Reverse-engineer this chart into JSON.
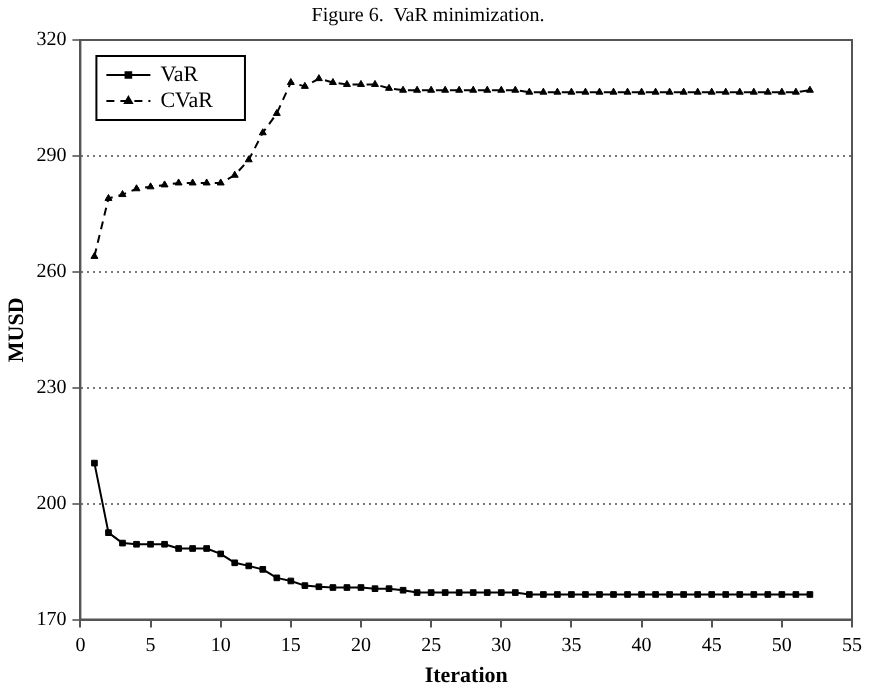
{
  "chart_data": {
    "type": "line",
    "title": "Figure 6.  VaR minimization.",
    "xlabel": "Iteration",
    "ylabel": "MUSD",
    "x": [
      1,
      2,
      3,
      4,
      5,
      6,
      7,
      8,
      9,
      10,
      11,
      12,
      13,
      14,
      15,
      16,
      17,
      18,
      19,
      20,
      21,
      22,
      23,
      24,
      25,
      26,
      27,
      28,
      29,
      30,
      31,
      32,
      33,
      34,
      35,
      36,
      37,
      38,
      39,
      40,
      41,
      42,
      43,
      44,
      45,
      46,
      47,
      48,
      49,
      50,
      51,
      52
    ],
    "series": [
      {
        "name": "VaR",
        "color": "#000000",
        "marker": "square",
        "line_style": "solid",
        "values": [
          210.5,
          192.5,
          189.8,
          189.5,
          189.5,
          189.5,
          188.4,
          188.4,
          188.4,
          187,
          184.7,
          183.9,
          183,
          180.8,
          180,
          178.8,
          178.5,
          178.3,
          178.3,
          178.3,
          178,
          178,
          177.6,
          177,
          177,
          177,
          177,
          177,
          177,
          177,
          177,
          176.5,
          176.5,
          176.5,
          176.5,
          176.5,
          176.5,
          176.5,
          176.5,
          176.5,
          176.5,
          176.5,
          176.5,
          176.5,
          176.5,
          176.5,
          176.5,
          176.5,
          176.5,
          176.5,
          176.5,
          176.5
        ]
      },
      {
        "name": "CVaR",
        "color": "#000000",
        "marker": "triangle",
        "line_style": "dashed",
        "values": [
          264,
          279,
          280,
          281.5,
          282,
          282.5,
          283,
          283,
          283,
          283,
          285,
          289,
          296,
          301,
          309,
          308,
          310,
          309,
          308.5,
          308.5,
          308.5,
          307.5,
          307,
          307,
          307,
          307,
          307,
          307,
          307,
          307,
          307,
          306.5,
          306.5,
          306.5,
          306.5,
          306.5,
          306.5,
          306.5,
          306.5,
          306.5,
          306.5,
          306.5,
          306.5,
          306.5,
          306.5,
          306.5,
          306.5,
          306.5,
          306.5,
          306.5,
          306.5,
          307
        ]
      }
    ],
    "xlim": [
      0,
      55
    ],
    "xticks": [
      0,
      5,
      10,
      15,
      20,
      25,
      30,
      35,
      40,
      45,
      50,
      55
    ],
    "ylim": [
      170,
      320
    ],
    "yticks": [
      170,
      200,
      230,
      260,
      290,
      320
    ],
    "grid": "y",
    "legend": "top left"
  }
}
